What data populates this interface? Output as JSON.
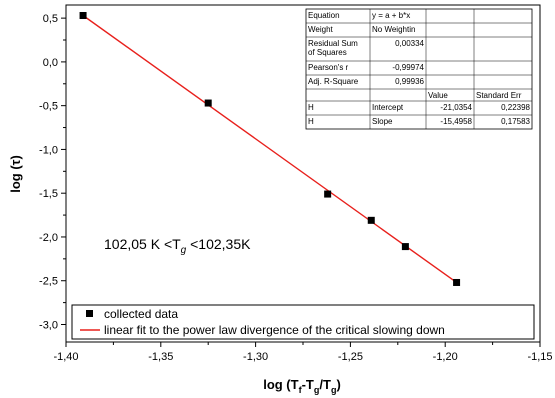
{
  "chart_data": {
    "type": "scatter",
    "xlabel_main": "log (T",
    "xlabel_sub1": "f",
    "xlabel_mid": "-T",
    "xlabel_sub2": "g",
    "xlabel_mid2": "/T",
    "xlabel_sub3": "g",
    "xlabel_end": ")",
    "ylabel": "log (τ)",
    "xlim": [
      -1.4,
      -1.15
    ],
    "ylim": [
      -3.2,
      0.65
    ],
    "x_ticks": [
      -1.4,
      -1.35,
      -1.3,
      -1.25,
      -1.2,
      -1.15
    ],
    "x_tick_labels": [
      "-1,40",
      "-1,35",
      "-1,30",
      "-1,25",
      "-1,20",
      "-1,15"
    ],
    "y_ticks": [
      0.5,
      0.0,
      -0.5,
      -1.0,
      -1.5,
      -2.0,
      -2.5,
      -3.0
    ],
    "y_tick_labels": [
      "0,5",
      "0,0",
      "-0,5",
      "-1,0",
      "-1,5",
      "-2,0",
      "-2,5",
      "-3,0"
    ],
    "series": [
      {
        "name": "collected data",
        "kind": "points",
        "color": "#000000",
        "x": [
          -1.391,
          -1.325,
          -1.262,
          -1.239,
          -1.221,
          -1.194
        ],
        "y": [
          0.53,
          -0.47,
          -1.51,
          -1.81,
          -2.11,
          -2.52
        ]
      },
      {
        "name": "linear fit to the power law divergence of the critical slowing down",
        "kind": "line",
        "color": "#e8201c",
        "x": [
          -1.391,
          -1.194
        ],
        "y": [
          0.53,
          -2.52
        ]
      }
    ],
    "annotation": {
      "prefix": "102,05 K <T",
      "sub": "g",
      "suffix": " <102,35K"
    },
    "legend_position": "bottom",
    "fit_table": {
      "rows": [
        [
          "Equation",
          "y = a + b*x",
          "",
          ""
        ],
        [
          "Weight",
          "No Weightin",
          "",
          ""
        ],
        [
          "Residual Sum of Squares",
          "0,00334",
          "",
          ""
        ],
        [
          "Pearson's r",
          "-0,99974",
          "",
          ""
        ],
        [
          "Adj. R-Square",
          "0,99936",
          "",
          ""
        ],
        [
          "",
          "",
          "Value",
          "Standard Err"
        ],
        [
          "H",
          "Intercept",
          "-21,0354",
          "0,22398"
        ],
        [
          "H",
          "Slope",
          "-15,4958",
          "0,17583"
        ]
      ]
    }
  }
}
